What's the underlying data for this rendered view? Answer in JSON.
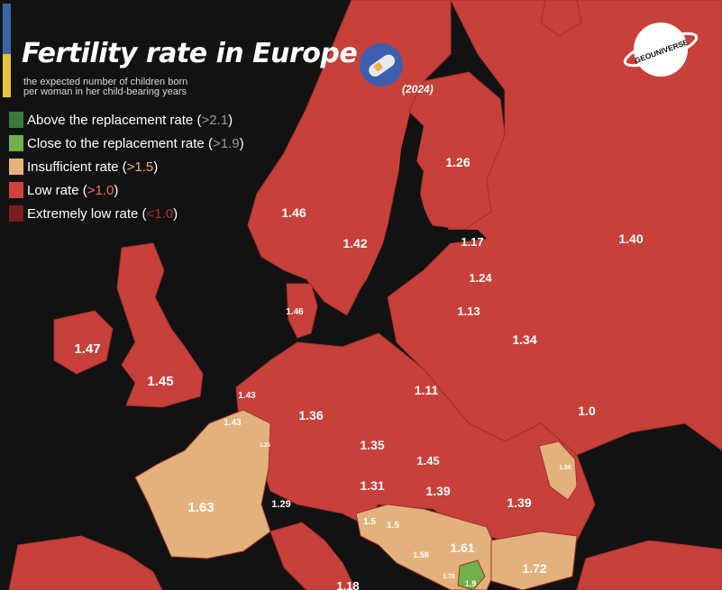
{
  "header": {
    "title": "Fertility rate in Europe",
    "subtitle_line1": "the expected number of children born",
    "subtitle_line2": "per woman in her child-bearing years",
    "year": "(2024)"
  },
  "logo": {
    "text": "GEOUNIVERSE",
    "icon": "planet-logo-icon"
  },
  "legend": [
    {
      "label": "Above the replacement rate (",
      "threshold": ">2.1",
      "close": ")",
      "color": "#3a7a3a",
      "threshold_color": "#9a9a9a"
    },
    {
      "label": "Close to the replacement rate (",
      "threshold": ">1.9",
      "close": ")",
      "color": "#6fb04a",
      "threshold_color": "#9a9a9a"
    },
    {
      "label": "Insufficient rate (",
      "threshold": ">1.5",
      "close": ")",
      "color": "#e8b27a",
      "threshold_color": "#e8b27a"
    },
    {
      "label": "Low rate (",
      "threshold": ">1.0",
      "close": ")",
      "color": "#d0413a",
      "threshold_color": "#ef6f6a"
    },
    {
      "label": "Extremely low rate (",
      "threshold": "<1.0",
      "close": ")",
      "color": "#7a1c1c",
      "threshold_color": "#a83030"
    }
  ],
  "colors": {
    "low": "#c8403a",
    "insufficient": "#e3b27c",
    "close": "#6fb04a",
    "sea": "#121212",
    "border": "#a0302c"
  },
  "regions": [
    {
      "name": "Norway",
      "value": "1.46"
    },
    {
      "name": "Sweden",
      "value": "1.42"
    },
    {
      "name": "Finland",
      "value": "1.26"
    },
    {
      "name": "Estonia",
      "value": "1.17"
    },
    {
      "name": "Latvia",
      "value": "1.24"
    },
    {
      "name": "Lithuania",
      "value": "1.13"
    },
    {
      "name": "Russia",
      "value": "1.40"
    },
    {
      "name": "Denmark",
      "value": "1.46"
    },
    {
      "name": "Ireland",
      "value": "1.47"
    },
    {
      "name": "United Kingdom",
      "value": "1.45"
    },
    {
      "name": "Netherlands",
      "value": "1.43"
    },
    {
      "name": "Belgium",
      "value": "1.43"
    },
    {
      "name": "Luxembourg",
      "value": "1.25"
    },
    {
      "name": "Germany",
      "value": "1.36"
    },
    {
      "name": "Poland",
      "value": "1.11"
    },
    {
      "name": "Belarus",
      "value": "1.34"
    },
    {
      "name": "Ukraine",
      "value": "1.0"
    },
    {
      "name": "Czechia",
      "value": "1.35"
    },
    {
      "name": "Slovakia",
      "value": "1.45"
    },
    {
      "name": "Austria",
      "value": "1.31"
    },
    {
      "name": "Hungary",
      "value": "1.39"
    },
    {
      "name": "Romania",
      "value": "1.39"
    },
    {
      "name": "Moldova",
      "value": "1.56"
    },
    {
      "name": "France",
      "value": "1.63"
    },
    {
      "name": "Switzerland",
      "value": "1.29"
    },
    {
      "name": "Slovenia",
      "value": "1.5"
    },
    {
      "name": "Croatia",
      "value": "1.5"
    },
    {
      "name": "Bosnia and Herzegovina",
      "value": "1.58"
    },
    {
      "name": "Serbia",
      "value": "1.61"
    },
    {
      "name": "Bulgaria",
      "value": "1.72"
    },
    {
      "name": "Montenegro",
      "value": "1.78"
    },
    {
      "name": "Kosovo",
      "value": "1.9"
    },
    {
      "name": "Italy",
      "value": "1.18"
    }
  ]
}
